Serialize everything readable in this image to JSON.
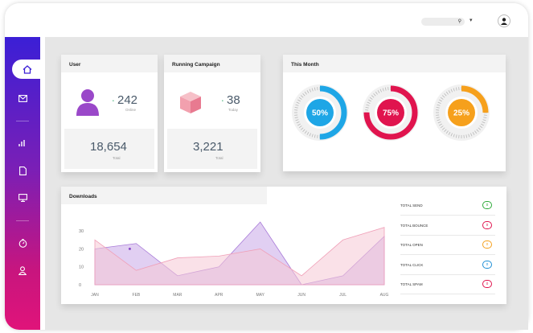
{
  "user_card": {
    "title": "User",
    "count": "242",
    "count_label": "Online",
    "total": "18,654",
    "total_label": "Total"
  },
  "campaign_card": {
    "title": "Running Campaign",
    "count": "38",
    "count_label": "Today",
    "total": "3,221",
    "total_label": "Total"
  },
  "month_card": {
    "title": "This Month",
    "rings": [
      {
        "label": "50%",
        "value": 50,
        "color": "#1ea6e6"
      },
      {
        "label": "75%",
        "value": 75,
        "color": "#e0144e"
      },
      {
        "label": "25%",
        "value": 25,
        "color": "#f6a01c"
      }
    ]
  },
  "downloads": {
    "title": "Downloads",
    "legend": [
      {
        "label": "TOTAL SEND",
        "badge": "0",
        "color": "#2eaa3a"
      },
      {
        "label": "TOTAL BOUNCE",
        "badge": "0",
        "color": "#e0144e"
      },
      {
        "label": "TOTAL OPEN",
        "badge": "0",
        "color": "#f6a01c"
      },
      {
        "label": "TOTAL CLICK",
        "badge": "0",
        "color": "#1e8fd6"
      },
      {
        "label": "TOTAL SPAM",
        "badge": "0",
        "color": "#e0144e"
      }
    ]
  },
  "chart_data": {
    "type": "area",
    "categories": [
      "JAN",
      "FEB",
      "MAR",
      "APR",
      "MAY",
      "JUN",
      "JUL",
      "AUG"
    ],
    "ylim": [
      0,
      35
    ],
    "yticks": [
      0,
      10,
      20,
      30
    ],
    "series": [
      {
        "values": [
          20,
          23,
          5,
          10,
          35,
          0,
          5,
          27
        ],
        "color": "#c9a8e8"
      },
      {
        "values": [
          25,
          8,
          15,
          16,
          20,
          5,
          25,
          32
        ],
        "color": "#f6c8d6"
      }
    ]
  }
}
